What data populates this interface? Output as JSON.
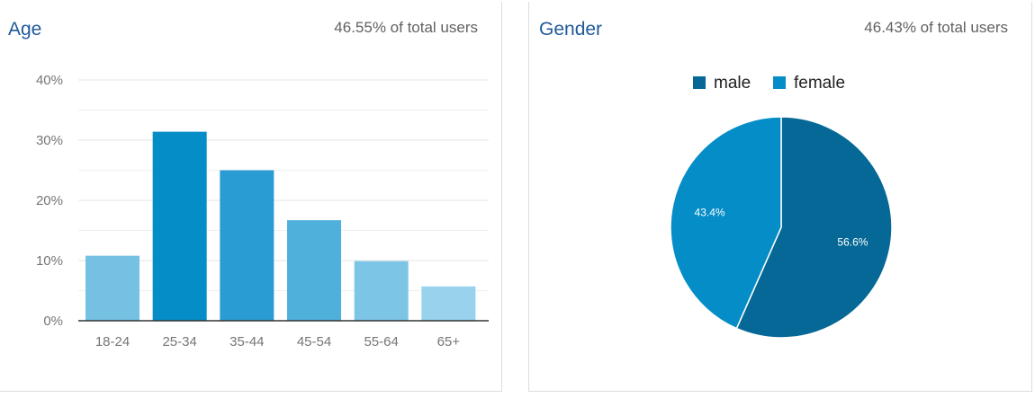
{
  "age": {
    "title": "Age",
    "subtitle": "46.55% of total users",
    "chart_data": {
      "type": "bar",
      "categories": [
        "18-24",
        "25-34",
        "35-44",
        "45-54",
        "55-64",
        "65+"
      ],
      "values": [
        10.8,
        31.4,
        25.0,
        16.7,
        9.9,
        5.7
      ],
      "colors": [
        "#74c1e3",
        "#058dc7",
        "#299dd3",
        "#50b0dc",
        "#7cc5e6",
        "#99d2ec"
      ],
      "yticks": [
        "0%",
        "10%",
        "20%",
        "30%",
        "40%"
      ],
      "ylim": [
        0,
        40
      ],
      "grid": true
    }
  },
  "gender": {
    "title": "Gender",
    "subtitle": "46.43% of total users",
    "chart_data": {
      "type": "pie",
      "slices": [
        {
          "name": "male",
          "value": 56.6,
          "label": "56.6%",
          "color": "#056896"
        },
        {
          "name": "female",
          "value": 43.4,
          "label": "43.4%",
          "color": "#058dc7"
        }
      ],
      "legend": "top"
    }
  }
}
